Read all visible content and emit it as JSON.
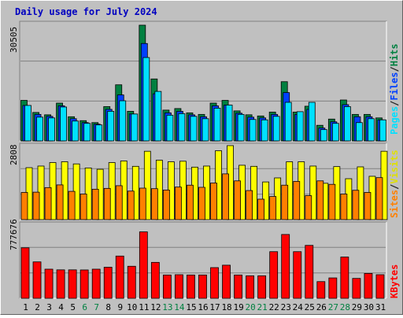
{
  "title": "Daily usage for July 2024",
  "colors": {
    "background": "#c0c0c0",
    "hits": "#008040",
    "files": "#0040ff",
    "pages": "#00e0ff",
    "visits": "#ffff00",
    "sites": "#ff8000",
    "kbytes": "#ff0000",
    "title": "#0000c0",
    "weekend_label": "#008040"
  },
  "chart_data": [
    {
      "type": "bar",
      "name": "hits-files-pages",
      "categories": [
        "1",
        "2",
        "3",
        "4",
        "5",
        "6",
        "7",
        "8",
        "9",
        "10",
        "11",
        "12",
        "13",
        "14",
        "15",
        "16",
        "17",
        "18",
        "19",
        "20",
        "21",
        "22",
        "23",
        "24",
        "25",
        "26",
        "27",
        "28",
        "29",
        "30",
        "31"
      ],
      "weekend_days": [
        "6",
        "7",
        "13",
        "14",
        "20",
        "21",
        "27",
        "28"
      ],
      "y_max_label": "30505",
      "ylim": [
        0,
        30505
      ],
      "series": [
        {
          "name": "Hits",
          "values": [
            10400,
            7300,
            6700,
            9700,
            6200,
            5200,
            4700,
            8800,
            14400,
            7600,
            29700,
            15900,
            7900,
            8300,
            7200,
            6800,
            9700,
            10400,
            7700,
            6700,
            6400,
            7400,
            15200,
            7400,
            8900,
            4000,
            5600,
            10500,
            6800,
            6800,
            5900
          ]
        },
        {
          "name": "Files",
          "values": [
            9100,
            6800,
            6300,
            9000,
            5700,
            4700,
            4300,
            8100,
            11800,
            6900,
            25000,
            12100,
            7200,
            7600,
            6700,
            6200,
            9000,
            9200,
            7100,
            6100,
            5900,
            6800,
            12400,
            6800,
            8100,
            3300,
            4900,
            9300,
            6200,
            6200,
            5400
          ]
        },
        {
          "name": "Pages",
          "values": [
            9100,
            6100,
            5900,
            8700,
            5100,
            4500,
            4100,
            7600,
            10300,
            6900,
            21400,
            12700,
            6600,
            7000,
            6300,
            5700,
            8400,
            9200,
            6800,
            5500,
            5400,
            6300,
            9900,
            7500,
            9900,
            2900,
            4500,
            8800,
            4700,
            5700,
            5400
          ]
        }
      ]
    },
    {
      "type": "bar",
      "name": "visits-sites",
      "categories": [
        "1",
        "2",
        "3",
        "4",
        "5",
        "6",
        "7",
        "8",
        "9",
        "10",
        "11",
        "12",
        "13",
        "14",
        "15",
        "16",
        "17",
        "18",
        "19",
        "20",
        "21",
        "22",
        "23",
        "24",
        "25",
        "26",
        "27",
        "28",
        "29",
        "30",
        "31"
      ],
      "y_max_label": "2808",
      "ylim": [
        0,
        2808
      ],
      "series": [
        {
          "name": "Visits",
          "values": [
            1930,
            1990,
            2120,
            2150,
            2070,
            1920,
            1870,
            2120,
            2180,
            1980,
            2540,
            2210,
            2150,
            2170,
            1950,
            1990,
            2560,
            2750,
            2020,
            1980,
            1400,
            1550,
            2150,
            2150,
            1990,
            1350,
            1970,
            1520,
            1960,
            1610,
            2540
          ]
        },
        {
          "name": "Sites",
          "values": [
            1010,
            1020,
            1190,
            1290,
            1050,
            950,
            1130,
            1160,
            1260,
            1060,
            1170,
            1150,
            1100,
            1210,
            1280,
            1200,
            1360,
            1700,
            1440,
            1080,
            760,
            860,
            1280,
            1420,
            890,
            1440,
            1310,
            950,
            1090,
            1010,
            1560
          ]
        }
      ]
    },
    {
      "type": "bar",
      "name": "kbytes",
      "categories": [
        "1",
        "2",
        "3",
        "4",
        "5",
        "6",
        "7",
        "8",
        "9",
        "10",
        "11",
        "12",
        "13",
        "14",
        "15",
        "16",
        "17",
        "18",
        "19",
        "20",
        "21",
        "22",
        "23",
        "24",
        "25",
        "26",
        "27",
        "28",
        "29",
        "30",
        "31"
      ],
      "y_max_label": "777676",
      "ylim": [
        0,
        777676
      ],
      "series": [
        {
          "name": "KBytes",
          "values": [
            520000,
            375000,
            300000,
            293000,
            293000,
            292000,
            300000,
            320000,
            435000,
            330000,
            684000,
            370000,
            240000,
            243000,
            240000,
            240000,
            316000,
            341000,
            240000,
            232000,
            232000,
            480000,
            657000,
            480000,
            545000,
            172000,
            210000,
            425000,
            205000,
            256000,
            243000
          ]
        }
      ]
    }
  ],
  "legend_pages": "Pages",
  "legend_files": "Files",
  "legend_hits": "Hits",
  "legend_sep": "/",
  "legend_sites": "Sites",
  "legend_visits": "Visits",
  "legend_kbytes": "KBytes"
}
